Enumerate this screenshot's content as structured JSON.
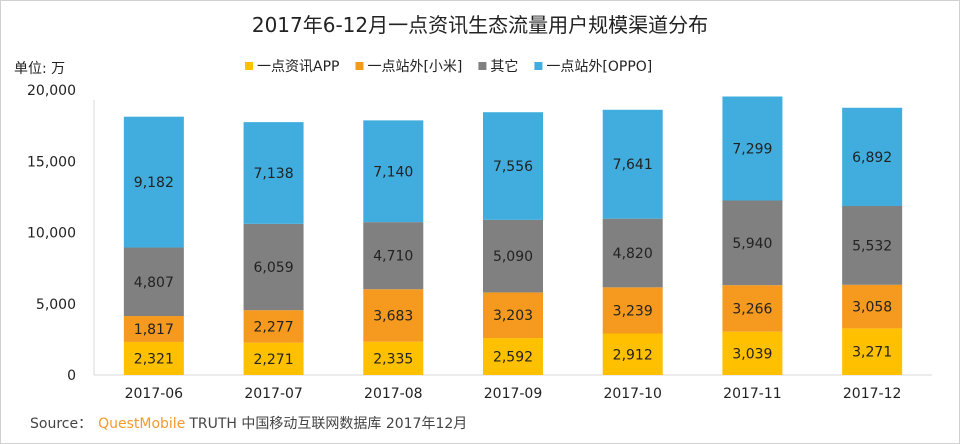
{
  "chart_data": {
    "type": "bar",
    "stacked": true,
    "title": "2017年6-12月一点资讯生态流量用户规模渠道分布",
    "unit_label": "单位: 万",
    "categories": [
      "2017-06",
      "2017-07",
      "2017-08",
      "2017-09",
      "2017-10",
      "2017-11",
      "2017-12"
    ],
    "series": [
      {
        "name": "一点资讯APP",
        "color": "#FFC000",
        "values": [
          2321,
          2271,
          2335,
          2592,
          2912,
          3039,
          3271
        ],
        "labels": [
          "2,321",
          "2,271",
          "2,335",
          "2,592",
          "2,912",
          "3,039",
          "3,271"
        ]
      },
      {
        "name": "一点站外[小米]",
        "color": "#F59A1E",
        "values": [
          1817,
          2277,
          3683,
          3203,
          3239,
          3266,
          3058
        ],
        "labels": [
          "1,817",
          "2,277",
          "3,683",
          "3,203",
          "3,239",
          "3,266",
          "3,058"
        ]
      },
      {
        "name": "其它",
        "color": "#808080",
        "values": [
          4807,
          6059,
          4710,
          5090,
          4820,
          5940,
          5532
        ],
        "labels": [
          "4,807",
          "6,059",
          "4,710",
          "5,090",
          "4,820",
          "5,940",
          "5,532"
        ]
      },
      {
        "name": "一点站外[OPPO]",
        "color": "#40ADDE",
        "values": [
          9182,
          7138,
          7140,
          7556,
          7641,
          7299,
          6892
        ],
        "labels": [
          "9,182",
          "7,138",
          "7,140",
          "7,556",
          "7,641",
          "7,299",
          "6,892"
        ]
      }
    ],
    "ylim": [
      0,
      20000
    ],
    "yticks": [
      0,
      5000,
      10000,
      15000,
      20000
    ],
    "ytick_labels": [
      "0",
      "5,000",
      "10,000",
      "15,000",
      "20,000"
    ],
    "legend": "top",
    "grid": false
  },
  "source": {
    "prefix": "Source：",
    "brand": "QuestMobile",
    "brand_color": "#F39A2B",
    "rest": "TRUTH 中国移动互联网数据库 2017年12月"
  }
}
